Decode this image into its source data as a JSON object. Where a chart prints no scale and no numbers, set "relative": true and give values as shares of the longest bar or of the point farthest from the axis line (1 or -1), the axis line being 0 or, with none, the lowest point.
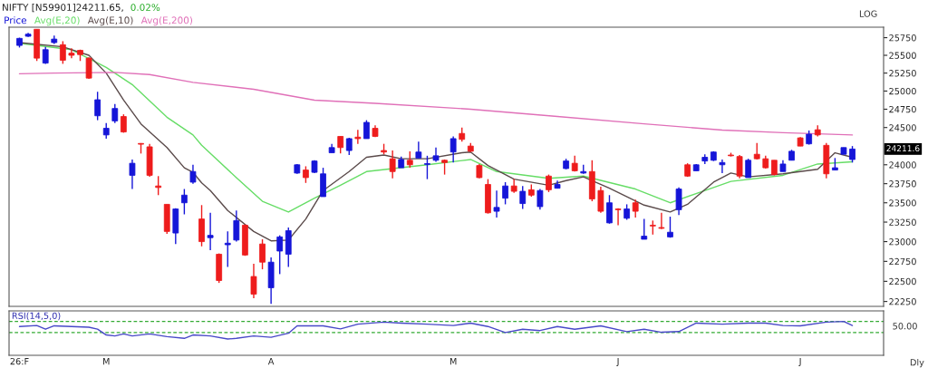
{
  "chart_data": [
    {
      "type": "candlestick",
      "title": "NIFTY [N59901]24211.65,",
      "subtitle": "0.02%",
      "log": "y",
      "legend": "top left",
      "tick_labels": "y",
      "categories": [
        null,
        null,
        null,
        null,
        null,
        null,
        null,
        null,
        null,
        null,
        null,
        null,
        null,
        null,
        null,
        null,
        null,
        null,
        null,
        null,
        null,
        null,
        null,
        null,
        null,
        null,
        null,
        null,
        null,
        null,
        null,
        null,
        null,
        null,
        null,
        null,
        null,
        null,
        null,
        null,
        null,
        null,
        null,
        null,
        null,
        null,
        null,
        null,
        null,
        null,
        null,
        null,
        null,
        null,
        null,
        null,
        null,
        null,
        null,
        null,
        null,
        null,
        null,
        null,
        null,
        null,
        null,
        null,
        null,
        null,
        null,
        null,
        null,
        null,
        null,
        null,
        null,
        null,
        null,
        null,
        null,
        null,
        null,
        null,
        null,
        null,
        null,
        null,
        null,
        null,
        null,
        null,
        null,
        null,
        null,
        null,
        null
      ],
      "ylim": [
        22190,
        25900
      ],
      "yticks": [
        22250,
        22500,
        22750,
        23000,
        23250,
        23500,
        23750,
        24000,
        24500,
        24750,
        25000,
        25250,
        25500,
        25750
      ],
      "annotations": [
        "LOG",
        "24211.6"
      ],
      "series": [
        {
          "name": "Price",
          "color": "#1515d8",
          "ohlc": [
            [
              25640,
              25750,
              25610,
              25740
            ],
            [
              25770,
              25820,
              25760,
              25800
            ],
            [
              25870,
              25870,
              25420,
              25460
            ],
            [
              25390,
              25620,
              25380,
              25580
            ],
            [
              25680,
              25780,
              25660,
              25730
            ],
            [
              25650,
              25700,
              25380,
              25430
            ],
            [
              25530,
              25600,
              25460,
              25500
            ],
            [
              25570,
              25580,
              25420,
              25510
            ],
            [
              25460,
              25470,
              25170,
              25180
            ],
            [
              24660,
              24990,
              24600,
              24880
            ],
            [
              24400,
              24560,
              24350,
              24490
            ],
            [
              24590,
              24820,
              24560,
              24760
            ],
            [
              24650,
              24680,
              24430,
              24440
            ],
            [
              23860,
              24070,
              23680,
              24020
            ],
            [
              24285,
              24290,
              24150,
              24275
            ],
            [
              24240,
              24280,
              23840,
              23860
            ],
            [
              23720,
              23850,
              23600,
              23700
            ],
            [
              23480,
              23480,
              23100,
              23130
            ],
            [
              23110,
              23430,
              22970,
              23420
            ],
            [
              23500,
              23680,
              23350,
              23600
            ],
            [
              23770,
              24000,
              23750,
              23910
            ],
            [
              23290,
              23470,
              22940,
              23000
            ],
            [
              23050,
              23370,
              22890,
              23080
            ],
            [
              22840,
              22850,
              22480,
              22510
            ],
            [
              22960,
              23130,
              22680,
              22980
            ],
            [
              23020,
              23400,
              23000,
              23270
            ],
            [
              23210,
              23220,
              22820,
              22830
            ],
            [
              22560,
              22720,
              22290,
              22340
            ],
            [
              22970,
              23030,
              22650,
              22740
            ],
            [
              22420,
              22800,
              22220,
              22740
            ],
            [
              22880,
              23080,
              22590,
              23060
            ],
            [
              22840,
              23180,
              22680,
              23140
            ],
            [
              23890,
              24010,
              23880,
              24000
            ],
            [
              23930,
              23980,
              23760,
              23830
            ],
            [
              23900,
              24060,
              23890,
              24050
            ],
            [
              23580,
              23960,
              23580,
              23880
            ],
            [
              24160,
              24280,
              24160,
              24230
            ],
            [
              24380,
              24380,
              24150,
              24230
            ],
            [
              24190,
              24360,
              24130,
              24350
            ],
            [
              24370,
              24470,
              24280,
              24350
            ],
            [
              24350,
              24600,
              24350,
              24570
            ],
            [
              24490,
              24530,
              24370,
              24380
            ],
            [
              24190,
              24280,
              24140,
              24170
            ],
            [
              24080,
              24190,
              23820,
              23910
            ],
            [
              23960,
              24110,
              23960,
              24070
            ],
            [
              24060,
              24180,
              23960,
              24000
            ],
            [
              24090,
              24310,
              24090,
              24170
            ],
            [
              24005,
              24120,
              23810,
              24015
            ],
            [
              24060,
              24230,
              24040,
              24120
            ],
            [
              24060,
              24070,
              23870,
              24030
            ],
            [
              24170,
              24380,
              24030,
              24350
            ],
            [
              24420,
              24500,
              24310,
              24340
            ],
            [
              24250,
              24290,
              24170,
              24180
            ],
            [
              23990,
              24010,
              23820,
              23830
            ],
            [
              23740,
              23810,
              23360,
              23370
            ],
            [
              23390,
              23660,
              23310,
              23440
            ],
            [
              23560,
              23770,
              23480,
              23720
            ],
            [
              23720,
              23810,
              23630,
              23650
            ],
            [
              23490,
              23720,
              23420,
              23650
            ],
            [
              23670,
              23740,
              23580,
              23600
            ],
            [
              23450,
              23680,
              23410,
              23660
            ],
            [
              23850,
              23870,
              23640,
              23670
            ],
            [
              23690,
              23790,
              23690,
              23740
            ],
            [
              23950,
              24080,
              23940,
              24050
            ],
            [
              24020,
              24120,
              23910,
              23920
            ],
            [
              23890,
              24000,
              23880,
              23910
            ],
            [
              23910,
              24060,
              23520,
              23550
            ],
            [
              23660,
              23710,
              23370,
              23390
            ],
            [
              23240,
              23600,
              23230,
              23500
            ],
            [
              23420,
              23430,
              23210,
              23410
            ],
            [
              23300,
              23480,
              23280,
              23420
            ],
            [
              23500,
              23540,
              23310,
              23390
            ],
            [
              23030,
              23290,
              23030,
              23070
            ],
            [
              23210,
              23270,
              23090,
              23200
            ],
            [
              23180,
              23370,
              23160,
              23170
            ],
            [
              23060,
              23320,
              23050,
              23120
            ],
            [
              23410,
              23700,
              23340,
              23680
            ],
            [
              24000,
              24020,
              23840,
              23850
            ],
            [
              23920,
              24010,
              23920,
              24000
            ],
            [
              24050,
              24140,
              24010,
              24100
            ],
            [
              24060,
              24180,
              24050,
              24170
            ],
            [
              24000,
              24070,
              23890,
              24030
            ],
            [
              24130,
              24160,
              24110,
              24120
            ],
            [
              24110,
              24130,
              23820,
              23850
            ],
            [
              23830,
              24080,
              23830,
              24060
            ],
            [
              24140,
              24290,
              24070,
              24080
            ],
            [
              24080,
              24120,
              23950,
              23960
            ],
            [
              24060,
              24060,
              23860,
              23870
            ],
            [
              23910,
              24060,
              23910,
              24010
            ],
            [
              24060,
              24200,
              24060,
              24180
            ],
            [
              24360,
              24370,
              24250,
              24250
            ],
            [
              24280,
              24460,
              24270,
              24410
            ],
            [
              24470,
              24530,
              24380,
              24400
            ],
            [
              24260,
              24290,
              23820,
              23880
            ],
            [
              23930,
              24090,
              23930,
              23960
            ],
            [
              24140,
              24230,
              24140,
              24230
            ],
            [
              24070,
              24250,
              24030,
              24210
            ]
          ],
          "colors": [
            "#1515d8",
            "#1515d8",
            "#ee1c1c",
            "#1515d8",
            "#1515d8",
            "#ee1c1c",
            "#ee1c1c",
            "#ee1c1c",
            "#ee1c1c",
            "#1515d8",
            "#1515d8",
            "#1515d8",
            "#ee1c1c",
            "#1515d8",
            "#ee1c1c",
            "#ee1c1c",
            "#ee1c1c",
            "#ee1c1c",
            "#1515d8",
            "#1515d8",
            "#1515d8",
            "#ee1c1c",
            "#1515d8",
            "#ee1c1c",
            "#1515d8",
            "#1515d8",
            "#ee1c1c",
            "#ee1c1c",
            "#ee1c1c",
            "#1515d8",
            "#1515d8",
            "#1515d8",
            "#1515d8",
            "#ee1c1c",
            "#1515d8",
            "#1515d8",
            "#1515d8",
            "#ee1c1c",
            "#1515d8",
            "#ee1c1c",
            "#1515d8",
            "#ee1c1c",
            "#ee1c1c",
            "#ee1c1c",
            "#1515d8",
            "#ee1c1c",
            "#1515d8",
            "#1515d8",
            "#1515d8",
            "#ee1c1c",
            "#1515d8",
            "#ee1c1c",
            "#ee1c1c",
            "#ee1c1c",
            "#ee1c1c",
            "#1515d8",
            "#1515d8",
            "#ee1c1c",
            "#1515d8",
            "#ee1c1c",
            "#1515d8",
            "#ee1c1c",
            "#1515d8",
            "#1515d8",
            "#ee1c1c",
            "#1515d8",
            "#ee1c1c",
            "#ee1c1c",
            "#1515d8",
            "#ee1c1c",
            "#1515d8",
            "#ee1c1c",
            "#1515d8",
            "#ee1c1c",
            "#ee1c1c",
            "#1515d8",
            "#1515d8",
            "#ee1c1c",
            "#1515d8",
            "#1515d8",
            "#1515d8",
            "#1515d8",
            "#ee1c1c",
            "#ee1c1c",
            "#1515d8",
            "#ee1c1c",
            "#ee1c1c",
            "#ee1c1c",
            "#1515d8",
            "#1515d8",
            "#ee1c1c",
            "#1515d8",
            "#ee1c1c",
            "#ee1c1c",
            "#1515d8",
            "#1515d8",
            "#1515d8"
          ]
        },
        {
          "name": "Avg(E,20)",
          "type": "line",
          "color": "#66dd66",
          "values": [
            25670,
            null,
            null,
            null,
            null,
            null,
            25580,
            null,
            null,
            null,
            25330,
            null,
            null,
            25090,
            null,
            null,
            null,
            24640,
            null,
            null,
            24400,
            24260,
            null,
            null,
            null,
            23830,
            null,
            null,
            23520,
            null,
            null,
            23380,
            null,
            null,
            23560,
            null,
            null,
            23730,
            null,
            null,
            23910,
            null,
            null,
            null,
            null,
            null,
            null,
            24000,
            null,
            null,
            null,
            null,
            24070,
            null,
            null,
            23910,
            null,
            null,
            null,
            null,
            null,
            23820,
            null,
            null,
            null,
            23850,
            null,
            null,
            null,
            null,
            null,
            23680,
            null,
            null,
            null,
            23500,
            null,
            null,
            null,
            null,
            23700,
            null,
            23780,
            null,
            null,
            null,
            null,
            null,
            23860,
            null,
            null,
            null,
            24010,
            null,
            null,
            null,
            24040
          ]
        },
        {
          "name": "Avg(E,10)",
          "type": "line",
          "color": "#5a4a4a",
          "values": [
            25680,
            null,
            null,
            null,
            null,
            25620,
            null,
            null,
            25500,
            null,
            25250,
            null,
            24875,
            null,
            24550,
            null,
            null,
            24230,
            null,
            23960,
            23900,
            23760,
            23660,
            null,
            23400,
            null,
            null,
            23130,
            null,
            23010,
            null,
            23020,
            null,
            23290,
            null,
            23660,
            null,
            null,
            23910,
            null,
            24100,
            null,
            24130,
            null,
            24080,
            null,
            null,
            24080,
            null,
            null,
            null,
            24160,
            24170,
            null,
            23990,
            null,
            null,
            23810,
            null,
            null,
            null,
            23730,
            null,
            23790,
            null,
            23840,
            null,
            null,
            23690,
            null,
            null,
            null,
            23470,
            null,
            null,
            23380,
            null,
            23480,
            null,
            null,
            23770,
            null,
            23890,
            null,
            23840,
            null,
            null,
            null,
            23880,
            null,
            null,
            null,
            23940,
            null,
            24160,
            null,
            24100
          ]
        },
        {
          "name": "Avg(E,200)",
          "type": "line",
          "color": "#e070b8",
          "values": [
            25240,
            null,
            null,
            null,
            25250,
            null,
            null,
            null,
            null,
            null,
            null,
            25260,
            null,
            null,
            null,
            25230,
            null,
            null,
            null,
            null,
            25120,
            null,
            null,
            null,
            null,
            null,
            null,
            25025,
            null,
            null,
            null,
            null,
            null,
            null,
            24875,
            null,
            null,
            null,
            null,
            null,
            null,
            24830,
            null,
            null,
            null,
            null,
            null,
            null,
            null,
            null,
            null,
            null,
            24750,
            null,
            null,
            null,
            null,
            null,
            null,
            null,
            null,
            null,
            24650,
            null,
            null,
            null,
            null,
            null,
            null,
            null,
            null,
            null,
            24550,
            null,
            null,
            null,
            null,
            null,
            null,
            null,
            null,
            24465,
            null,
            null,
            null,
            null,
            null,
            null,
            24430,
            null,
            null,
            null,
            null,
            null,
            null,
            null,
            24400
          ]
        }
      ]
    },
    {
      "type": "line",
      "title": "RSI(14,5,0)",
      "relative": true,
      "categories": [
        "26:F",
        null,
        null,
        null,
        null,
        null,
        null,
        null,
        null,
        null,
        "M",
        null,
        null,
        null,
        null,
        null,
        null,
        null,
        null,
        null,
        null,
        null,
        null,
        null,
        null,
        null,
        null,
        null,
        null,
        "A",
        null,
        null,
        null,
        null,
        null,
        null,
        null,
        null,
        null,
        null,
        null,
        null,
        null,
        null,
        null,
        null,
        null,
        null,
        null,
        null,
        "M",
        null,
        null,
        null,
        null,
        null,
        null,
        null,
        null,
        null,
        null,
        null,
        null,
        null,
        null,
        null,
        null,
        null,
        null,
        "J",
        null,
        null,
        null,
        null,
        null,
        null,
        null,
        null,
        null,
        null,
        null,
        null,
        null,
        null,
        null,
        null,
        null,
        null,
        null,
        null,
        "J",
        null,
        null,
        null,
        null,
        null,
        null
      ],
      "ref_lines": [
        {
          "axis": "y",
          "value": 1.0,
          "color": "#33aa33",
          "line_style": "dashed"
        },
        {
          "axis": "y",
          "value": 0.67,
          "color": "#33aa33",
          "line_style": "dashed"
        }
      ],
      "annotations": [
        "50.00",
        "Dly"
      ],
      "series": [
        {
          "color": "#4848c8",
          "values": [
            0.85,
            null,
            0.88,
            0.77,
            0.87,
            null,
            0.85,
            null,
            0.83,
            0.77,
            0.6,
            0.57,
            0.63,
            0.57,
            null,
            0.63,
            null,
            0.55,
            null,
            0.5,
            0.6,
            null,
            0.57,
            null,
            0.48,
            0.5,
            null,
            0.57,
            0.55,
            0.53,
            null,
            0.65,
            0.87,
            null,
            null,
            0.87,
            null,
            0.78,
            null,
            0.92,
            null,
            null,
            0.98,
            null,
            0.95,
            null,
            null,
            0.92,
            null,
            null,
            0.88,
            null,
            0.95,
            null,
            0.85,
            null,
            0.67,
            null,
            0.77,
            null,
            0.73,
            null,
            0.85,
            null,
            0.77,
            null,
            null,
            0.87,
            null,
            null,
            0.7,
            null,
            0.77,
            null,
            0.68,
            null,
            0.7,
            null,
            0.95,
            null,
            null,
            0.92,
            null,
            null,
            0.95,
            null,
            0.95,
            null,
            0.88,
            null,
            0.87,
            null,
            null,
            0.98,
            null,
            1,
            0.88
          ]
        }
      ]
    }
  ]
}
